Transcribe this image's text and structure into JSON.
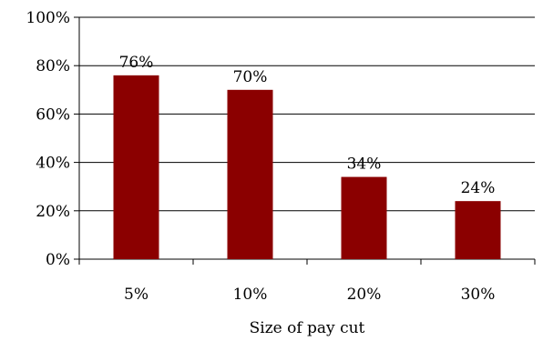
{
  "chart_data": {
    "type": "bar",
    "categories": [
      "5%",
      "10%",
      "20%",
      "30%"
    ],
    "values": [
      76,
      70,
      34,
      24
    ],
    "data_labels": [
      "76%",
      "70%",
      "34%",
      "24%"
    ],
    "y_ticks": [
      "0%",
      "20%",
      "40%",
      "60%",
      "80%",
      "100%"
    ],
    "ylim": [
      0,
      100
    ],
    "xlabel": "Size of pay cut",
    "ylabel": "",
    "title": "",
    "bar_color": "#8b0000",
    "grid": true,
    "legend": false
  }
}
